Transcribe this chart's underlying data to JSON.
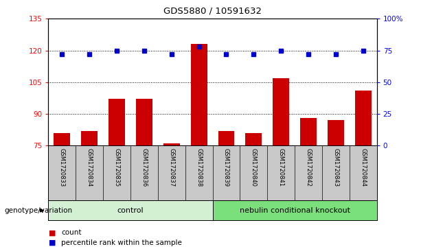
{
  "title": "GDS5880 / 10591632",
  "categories": [
    "GSM1720833",
    "GSM1720834",
    "GSM1720835",
    "GSM1720836",
    "GSM1720837",
    "GSM1720838",
    "GSM1720839",
    "GSM1720840",
    "GSM1720841",
    "GSM1720842",
    "GSM1720843",
    "GSM1720844"
  ],
  "counts": [
    81,
    82,
    97,
    97,
    76,
    123,
    82,
    81,
    107,
    88,
    87,
    101
  ],
  "percentiles": [
    72,
    72,
    75,
    75,
    72,
    78,
    72,
    72,
    75,
    72,
    72,
    75
  ],
  "ylim_left": [
    75,
    135
  ],
  "ylim_right": [
    0,
    100
  ],
  "yticks_left": [
    75,
    90,
    105,
    120,
    135
  ],
  "yticks_right": [
    0,
    25,
    50,
    75,
    100
  ],
  "ytick_labels_right": [
    "0",
    "25",
    "50",
    "75",
    "100%"
  ],
  "bar_color": "#cc0000",
  "dot_color": "#0000cc",
  "control_label": "control",
  "knockout_label": "nebulin conditional knockout",
  "control_indices": [
    0,
    1,
    2,
    3,
    4,
    5
  ],
  "knockout_indices": [
    6,
    7,
    8,
    9,
    10,
    11
  ],
  "genotype_label": "genotype/variation",
  "legend_count": "count",
  "legend_percentile": "percentile rank within the sample",
  "control_bg": "#d4f0d4",
  "knockout_bg": "#7be07b",
  "xticklabel_area_bg": "#c8c8c8",
  "spine_color": "#000000",
  "grid_yticks": [
    90,
    105,
    120
  ]
}
